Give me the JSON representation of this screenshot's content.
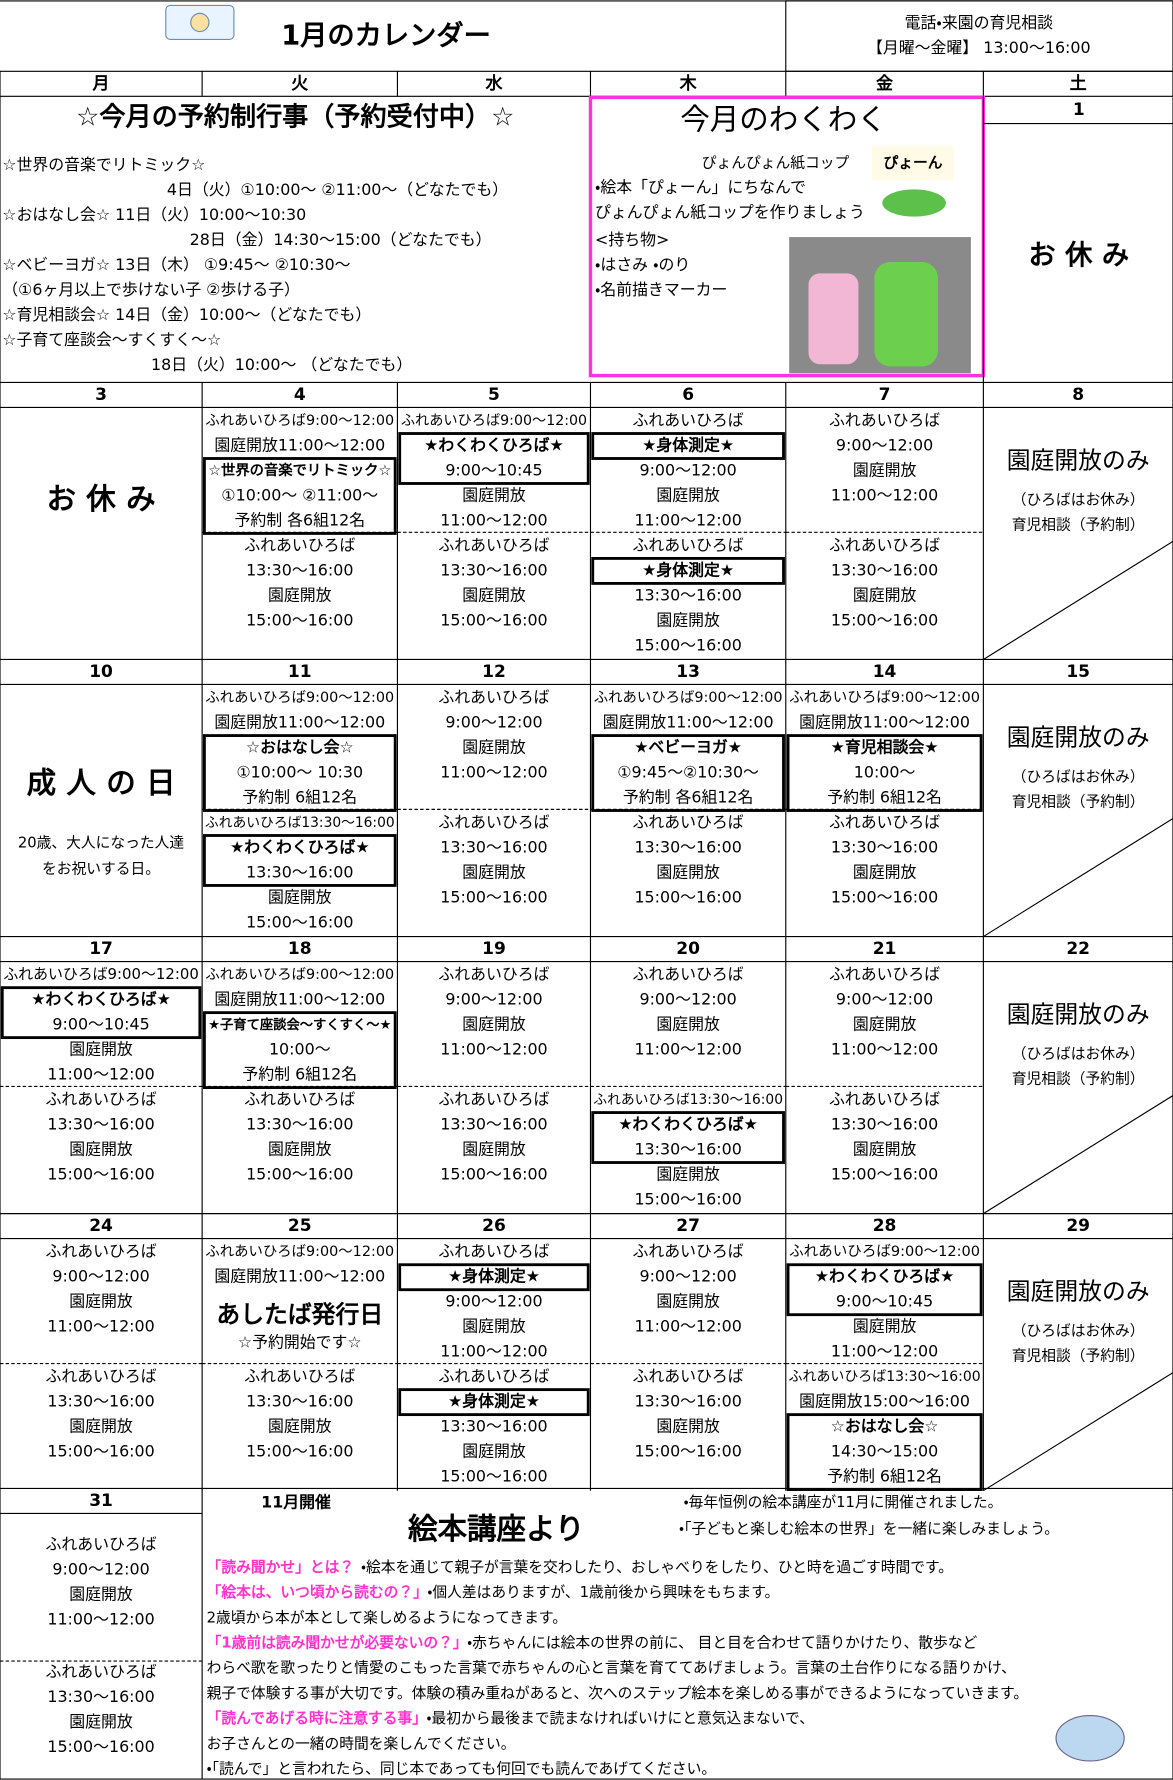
{
  "header": {
    "title": "1月のカレンダー",
    "consult_title": "電話・来園の育児相談",
    "consult_hours": "【月曜～金曜】 13:00～16:00"
  },
  "weekdays": [
    "月",
    "火",
    "水",
    "木",
    "金",
    "土"
  ],
  "reservation_events": {
    "title": "☆今月の予約制行事（予約受付中）☆",
    "lines": [
      "☆世界の音楽でリトミック☆",
      "4日（火）①10:00～ ②11:00～（どなたでも）",
      "☆おはなし会☆ 11日（火）10:00～10:30",
      "28日（金）14:30～15:00（どなたでも）",
      "☆ベビーヨガ☆ 13日（木） ①9:45～ ②10:30～",
      "（①6ヶ月以上で歩けない子 ②歩ける子）",
      "☆育児相談会☆ 14日（金）10:00～（どなたでも）",
      "☆子育て座談会～すくすく～☆",
      "18日（火）10:00～ （どなたでも）"
    ]
  },
  "wakuwaku": {
    "title": "今月のわくわく",
    "subtitle": "ぴょんぴょん紙コップ",
    "lines": [
      "・絵本「ぴょーん」にちなんで",
      "ぴょんぴょん紙コップを作りましょう",
      "<持ち物>",
      "・はさみ ・のり",
      "・名前描きマーカー"
    ],
    "book_title": "ぴょーん"
  },
  "first_saturday": {
    "date": "1",
    "note": "お 休 み"
  },
  "weeks": [
    [
      {
        "date": "3",
        "note": "お 休 み"
      },
      {
        "date": "4",
        "am": [
          "ふれあいひろば9:00～12:00",
          "園庭開放11:00～12:00",
          "☆世界の音楽でリトミック☆",
          "①10:00～ ②11:00～",
          "予約制 各6組12名"
        ],
        "pm": [
          "ふれあいひろば",
          "13:30～16:00",
          "園庭開放",
          "15:00～16:00"
        ]
      },
      {
        "date": "5",
        "am": [
          "ふれあいひろば9:00～12:00",
          "★わくわくひろば★",
          "9:00～10:45",
          "園庭開放",
          "11:00～12:00"
        ],
        "pm": [
          "ふれあいひろば",
          "13:30～16:00",
          "園庭開放",
          "15:00～16:00"
        ]
      },
      {
        "date": "6",
        "am": [
          "ふれあいひろば",
          "★身体測定★",
          "9:00～12:00",
          "園庭開放",
          "11:00～12:00"
        ],
        "pm": [
          "ふれあいひろば",
          "★身体測定★",
          "13:30～16:00",
          "園庭開放",
          "15:00～16:00"
        ]
      },
      {
        "date": "7",
        "am": [
          "ふれあいひろば",
          "9:00～12:00",
          "園庭開放",
          "11:00～12:00"
        ],
        "pm": [
          "ふれあいひろば",
          "13:30～16:00",
          "園庭開放",
          "15:00～16:00"
        ]
      },
      {
        "date": "8",
        "title": "園庭開放のみ",
        "lines": [
          "（ひろばはお休み）",
          "育児相談（予約制）"
        ]
      }
    ],
    [
      {
        "date": "10",
        "note": "成 人 の 日",
        "lines": [
          "20歳、大人になった人達",
          "をお祝いする日。"
        ]
      },
      {
        "date": "11",
        "am": [
          "ふれあいひろば9:00～12:00",
          "園庭開放11:00～12:00",
          "☆おはなし会☆",
          "①10:00～ 10:30",
          "予約制 6組12名"
        ],
        "pm": [
          "ふれあいひろば13:30～16:00",
          "★わくわくひろば★",
          "13:30～16:00",
          "園庭開放",
          "15:00～16:00"
        ]
      },
      {
        "date": "12",
        "am": [
          "ふれあいひろば",
          "9:00～12:00",
          "園庭開放",
          "11:00～12:00"
        ],
        "pm": [
          "ふれあいひろば",
          "13:30～16:00",
          "園庭開放",
          "15:00～16:00"
        ]
      },
      {
        "date": "13",
        "am": [
          "ふれあいひろば9:00～12:00",
          "園庭開放11:00～12:00",
          "★ベビーヨガ★",
          "①9:45～②10:30～",
          "予約制 各6組12名"
        ],
        "pm": [
          "ふれあいひろば",
          "13:30～16:00",
          "園庭開放",
          "15:00～16:00"
        ]
      },
      {
        "date": "14",
        "am": [
          "ふれあいひろば9:00～12:00",
          "園庭開放11:00～12:00",
          "★育児相談会★",
          "10:00～",
          "予約制 6組12名"
        ],
        "pm": [
          "ふれあいひろば",
          "13:30～16:00",
          "園庭開放",
          "15:00～16:00"
        ]
      },
      {
        "date": "15",
        "title": "園庭開放のみ",
        "lines": [
          "（ひろばはお休み）",
          "育児相談（予約制）"
        ]
      }
    ],
    [
      {
        "date": "17",
        "am": [
          "ふれあいひろば9:00～12:00",
          "★わくわくひろば★",
          "9:00～10:45",
          "園庭開放",
          "11:00～12:00"
        ],
        "pm": [
          "ふれあいひろば",
          "13:30～16:00",
          "園庭開放",
          "15:00～16:00"
        ]
      },
      {
        "date": "18",
        "am": [
          "ふれあいひろば9:00～12:00",
          "園庭開放11:00～12:00",
          "★子育て座談会～すくすく～★",
          "10:00～",
          "予約制 6組12名"
        ],
        "pm": [
          "ふれあいひろば",
          "13:30～16:00",
          "園庭開放",
          "15:00～16:00"
        ]
      },
      {
        "date": "19",
        "am": [
          "ふれあいひろば",
          "9:00～12:00",
          "園庭開放",
          "11:00～12:00"
        ],
        "pm": [
          "ふれあいひろば",
          "13:30～16:00",
          "園庭開放",
          "15:00～16:00"
        ]
      },
      {
        "date": "20",
        "am": [
          "ふれあいひろば",
          "9:00～12:00",
          "園庭開放",
          "11:00～12:00"
        ],
        "pm": [
          "ふれあいひろば13:30～16:00",
          "★わくわくひろば★",
          "13:30～16:00",
          "園庭開放",
          "15:00～16:00"
        ]
      },
      {
        "date": "21",
        "am": [
          "ふれあいひろば",
          "9:00～12:00",
          "園庭開放",
          "11:00～12:00"
        ],
        "pm": [
          "ふれあいひろば",
          "13:30～16:00",
          "園庭開放",
          "15:00～16:00"
        ]
      },
      {
        "date": "22",
        "title": "園庭開放のみ",
        "lines": [
          "（ひろばはお休み）",
          "育児相談（予約制）"
        ]
      }
    ],
    [
      {
        "date": "24",
        "am": [
          "ふれあいひろば",
          "9:00～12:00",
          "園庭開放",
          "11:00～12:00"
        ],
        "pm": [
          "ふれあいひろば",
          "13:30～16:00",
          "園庭開放",
          "15:00～16:00"
        ]
      },
      {
        "date": "25",
        "am": [
          "ふれあいひろば9:00～12:00",
          "園庭開放11:00～12:00",
          "あしたば発行日",
          "☆予約開始です☆"
        ],
        "pm": [
          "ふれあいひろば",
          "13:30～16:00",
          "園庭開放",
          "15:00～16:00"
        ]
      },
      {
        "date": "26",
        "am": [
          "ふれあいひろば",
          "★身体測定★",
          "9:00～12:00",
          "園庭開放",
          "11:00～12:00"
        ],
        "pm": [
          "ふれあいひろば",
          "★身体測定★",
          "13:30～16:00",
          "園庭開放",
          "15:00～16:00"
        ]
      },
      {
        "date": "27",
        "am": [
          "ふれあいひろば",
          "9:00～12:00",
          "園庭開放",
          "11:00～12:00"
        ],
        "pm": [
          "ふれあいひろば",
          "13:30～16:00",
          "園庭開放",
          "15:00～16:00"
        ]
      },
      {
        "date": "28",
        "am": [
          "ふれあいひろば9:00～12:00",
          "★わくわくひろば★",
          "9:00～10:45",
          "園庭開放",
          "11:00～12:00"
        ],
        "pm": [
          "ふれあいひろば13:30～16:00",
          "園庭開放15:00～16:00",
          "☆おはなし会☆",
          "14:30～15:00",
          "予約制 6組12名"
        ]
      },
      {
        "date": "29",
        "title": "園庭開放のみ",
        "lines": [
          "（ひろばはお休み）",
          "育児相談（予約制）"
        ]
      }
    ]
  ],
  "last_monday": {
    "date": "31",
    "am": [
      "ふれあいひろば",
      "9:00～12:00",
      "園庭開放",
      "11:00～12:00"
    ],
    "pm": [
      "ふれあいひろば",
      "13:30～16:00",
      "園庭開放",
      "15:00～16:00"
    ]
  },
  "lecture": {
    "held": "11月開催",
    "title": "絵本講座より",
    "intro": [
      "・毎年恒例の絵本講座が11月に開催されました。",
      "・「子どもと楽しむ絵本の世界」を一緒に楽しみましょう。"
    ],
    "lines": [
      {
        "q": "「読み聞かせ」とは？",
        "text": "・絵本を通じて親子が言葉を交わしたり、おしゃべりをしたり、ひと時を過ごす時間です。"
      },
      {
        "q": "「絵本は、いつ頃から読むの？」",
        "text": "・個人差はありますが、1歳前後から興味をもちます。"
      },
      {
        "text": "2歳頃から本が本として楽しめるようになってきます。"
      },
      {
        "q": "「1歳前は読み聞かせが必要ないの？」",
        "text": "・赤ちゃんには絵本の世界の前に、 目と目を合わせて語りかけたり、散歩など"
      },
      {
        "text": "わらべ歌を歌ったりと情愛のこもった言葉で赤ちゃんの心と言葉を育ててあげましょう。言葉の土台作りになる語りかけ、"
      },
      {
        "text": "親子で体験する事が大切です。体験の積み重ねがあると、次へのステップ絵本を楽しめる事ができるようになっていきます。"
      },
      {
        "q": "「読んであげる時に注意する事」",
        "text": "・最初から最後まで読まなければいけにと意気込まないで、"
      },
      {
        "text": "お子さんとの一緒の時間を楽しんでください。"
      },
      {
        "text": "・「読んで」と言われたら、同じ本であっても何回でも読んであげてください。"
      }
    ]
  }
}
